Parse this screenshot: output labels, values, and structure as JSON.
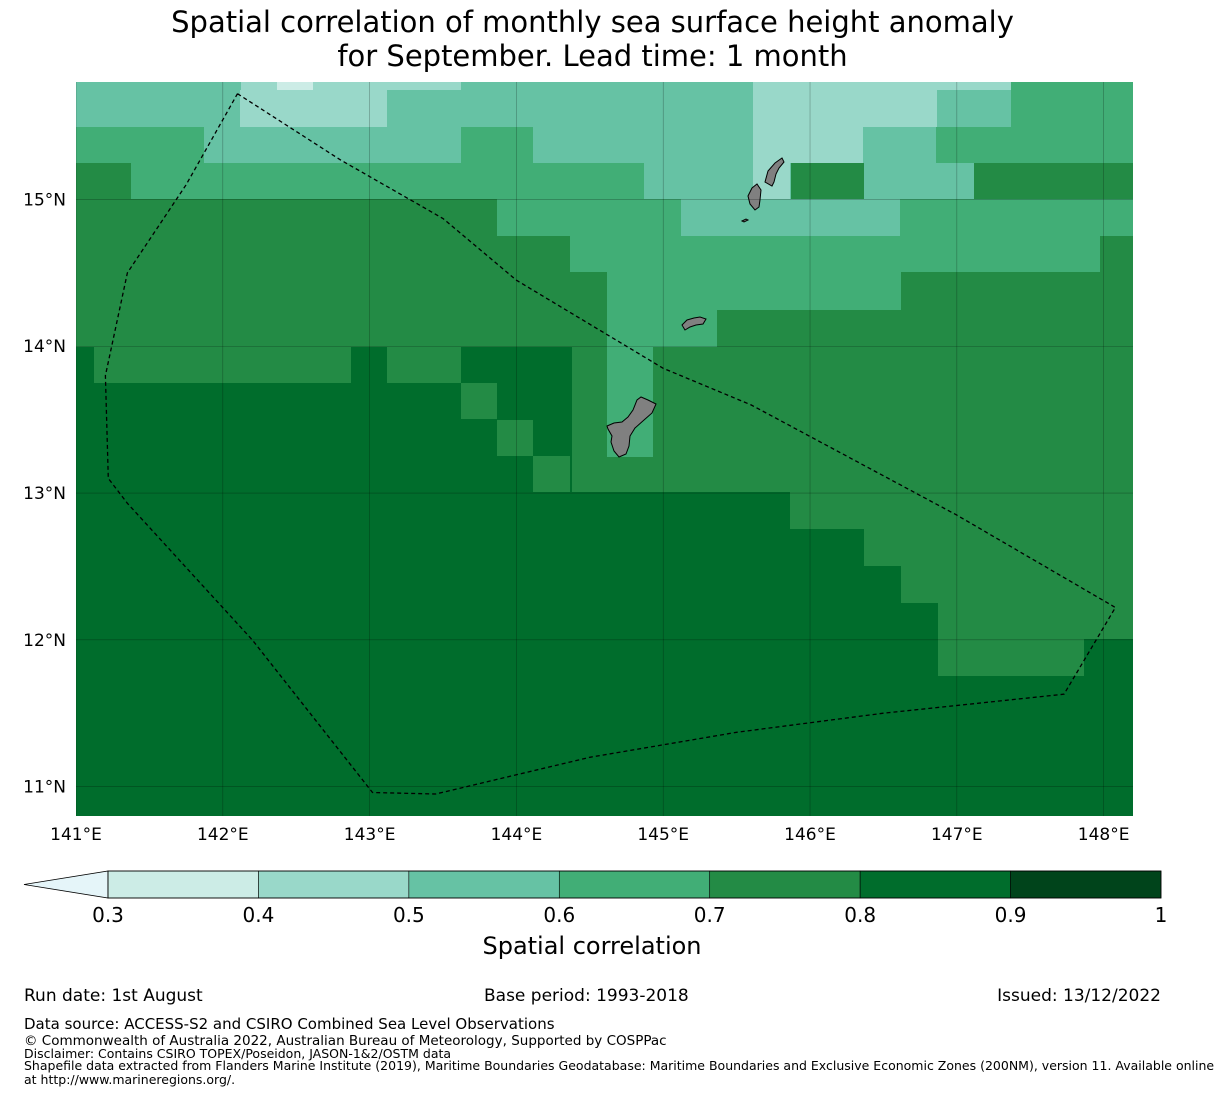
{
  "title": {
    "line1": "Spatial correlation of monthly sea surface height anomaly",
    "line2": "for September. Lead time: 1 month"
  },
  "map": {
    "lon_range": [
      141.0,
      148.2
    ],
    "lat_range": [
      10.8,
      15.8
    ],
    "x_ticks": [
      "141°E",
      "142°E",
      "143°E",
      "144°E",
      "145°E",
      "146°E",
      "147°E",
      "148°E"
    ],
    "y_ticks": [
      "11°N",
      "12°N",
      "13°N",
      "14°N",
      "15°N"
    ],
    "land_color": "#808080",
    "grid_color": "#000000",
    "eez_boundary_style": "dashed black",
    "eez_boundary_lonlat": [
      [
        142.1,
        15.72
      ],
      [
        142.8,
        15.27
      ],
      [
        143.5,
        14.87
      ],
      [
        144.0,
        14.45
      ],
      [
        145.0,
        13.85
      ],
      [
        145.6,
        13.6
      ],
      [
        147.0,
        12.85
      ],
      [
        148.08,
        12.22
      ],
      [
        147.73,
        11.63
      ],
      [
        146.5,
        11.5
      ],
      [
        145.5,
        11.37
      ],
      [
        144.5,
        11.2
      ],
      [
        143.45,
        10.95
      ],
      [
        143.02,
        10.96
      ],
      [
        142.2,
        12.0
      ],
      [
        141.35,
        12.93
      ],
      [
        141.22,
        13.1
      ],
      [
        141.2,
        13.8
      ],
      [
        141.35,
        14.5
      ],
      [
        141.75,
        15.1
      ],
      [
        142.1,
        15.72
      ]
    ]
  },
  "colorbar": {
    "label": "Spatial correlation",
    "ticks": [
      "0.3",
      "0.4",
      "0.5",
      "0.6",
      "0.7",
      "0.8",
      "0.9",
      "1"
    ],
    "colors": [
      "#e5f5f9",
      "#ccece6",
      "#99d8c9",
      "#66c2a4",
      "#41ae76",
      "#238b45",
      "#006d2c",
      "#00441b"
    ]
  },
  "footer": {
    "run_date": "Run date: 1st August",
    "base_period": "Base period: 1993-2018",
    "issued": "Issued: 13/12/2022",
    "data_source": "Data source: ACCESS-S2 and CSIRO Combined Sea Level Observations",
    "copyright": "© Commonwealth of Australia 2022, Australian Bureau of Meteorology, Supported by COSPPac",
    "disclaimer": "Disclaimer: Contains CSIRO TOPEX/Poseidon, JASON-1&2/OSTM data",
    "shapefile_1": "Shapefile data extracted from Flanders Marine Institute (2019), Maritime Boundaries Geodatabase: Maritime Boundaries and Exclusive Economic Zones (200NM), version 11. Available online",
    "shapefile_2": "at http://www.marineregions.org/."
  }
}
